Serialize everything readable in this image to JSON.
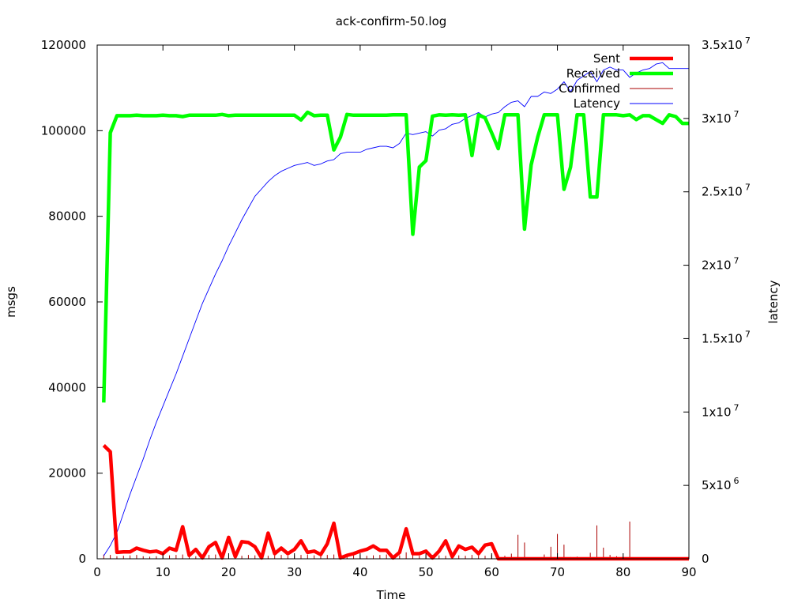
{
  "chart_data": {
    "type": "line",
    "title": "ack-confirm-50.log",
    "xlabel": "Time",
    "ylabel": "msgs",
    "y2label": "latency",
    "xlim": [
      0,
      90
    ],
    "ylim": [
      0,
      120000
    ],
    "y2lim": [
      0,
      35000000
    ],
    "xticks": [
      "0",
      "10",
      "20",
      "30",
      "40",
      "50",
      "60",
      "70",
      "80",
      "90"
    ],
    "yticks": [
      "0",
      "20000",
      "40000",
      "60000",
      "80000",
      "100000",
      "120000"
    ],
    "y2ticks": [
      {
        "mant": "0",
        "exp": ""
      },
      {
        "mant": "5x10",
        "exp": "6"
      },
      {
        "mant": "1x10",
        "exp": "7"
      },
      {
        "mant": "1.5x10",
        "exp": "7"
      },
      {
        "mant": "2x10",
        "exp": "7"
      },
      {
        "mant": "2.5x10",
        "exp": "7"
      },
      {
        "mant": "3x10",
        "exp": "7"
      },
      {
        "mant": "3.5x10",
        "exp": "7"
      }
    ],
    "legend_position": "top-right",
    "series": [
      {
        "name": "Sent",
        "axis": "y1",
        "color": "#ff0000",
        "style": "thick-line",
        "x": [
          1,
          2,
          3,
          4,
          5,
          6,
          7,
          8,
          9,
          10,
          11,
          12,
          13,
          14,
          15,
          16,
          17,
          18,
          19,
          20,
          21,
          22,
          23,
          24,
          25,
          26,
          27,
          28,
          29,
          30,
          31,
          32,
          33,
          34,
          35,
          36,
          37,
          38,
          39,
          40,
          41,
          42,
          43,
          44,
          45,
          46,
          47,
          48,
          49,
          50,
          51,
          52,
          53,
          54,
          55,
          56,
          57,
          58,
          59,
          60,
          61,
          62,
          63,
          64,
          65,
          66,
          67,
          68,
          69,
          70,
          71,
          72,
          73,
          74,
          75,
          76,
          77,
          78,
          79,
          80,
          81,
          82,
          83,
          84,
          85,
          86,
          87,
          88,
          89,
          90
        ],
        "values": [
          26500,
          25000,
          1500,
          1600,
          1600,
          2500,
          2000,
          1600,
          1800,
          1200,
          2500,
          2000,
          7500,
          800,
          2200,
          200,
          2800,
          3800,
          200,
          5000,
          500,
          4000,
          3800,
          2800,
          200,
          6000,
          1200,
          2500,
          1200,
          2200,
          4200,
          1500,
          1800,
          1000,
          3500,
          8300,
          200,
          800,
          1200,
          1800,
          2200,
          3000,
          2000,
          2000,
          200,
          1500,
          7000,
          1200,
          1200,
          1800,
          200,
          1800,
          4200,
          500,
          3000,
          2200,
          2700,
          1200,
          3200,
          3500,
          0,
          0,
          0,
          0,
          0,
          0,
          0,
          0,
          0,
          0,
          0,
          0,
          0,
          0,
          0,
          0,
          0,
          0,
          0,
          0,
          0,
          0,
          0,
          0,
          0,
          0,
          0,
          0,
          0,
          0
        ]
      },
      {
        "name": "Received",
        "axis": "y1",
        "color": "#00ff00",
        "style": "thick-line",
        "x": [
          1,
          2,
          3,
          4,
          5,
          6,
          7,
          8,
          9,
          10,
          11,
          12,
          13,
          14,
          15,
          16,
          17,
          18,
          19,
          20,
          21,
          22,
          23,
          24,
          25,
          26,
          27,
          28,
          29,
          30,
          31,
          32,
          33,
          34,
          35,
          36,
          37,
          38,
          39,
          40,
          41,
          42,
          43,
          44,
          45,
          46,
          47,
          48,
          49,
          50,
          51,
          52,
          53,
          54,
          55,
          56,
          57,
          58,
          59,
          60,
          61,
          62,
          63,
          64,
          65,
          66,
          67,
          68,
          69,
          70,
          71,
          72,
          73,
          74,
          75,
          76,
          77,
          78,
          79,
          80,
          81,
          82,
          83,
          84,
          85,
          86,
          87,
          88,
          89,
          90
        ],
        "values": [
          36500,
          99500,
          103500,
          103500,
          103500,
          103600,
          103500,
          103500,
          103500,
          103600,
          103500,
          103500,
          103300,
          103600,
          103600,
          103600,
          103600,
          103600,
          103800,
          103500,
          103600,
          103600,
          103600,
          103600,
          103600,
          103600,
          103600,
          103600,
          103600,
          103600,
          102500,
          104300,
          103500,
          103600,
          103600,
          95500,
          98500,
          103800,
          103600,
          103600,
          103600,
          103600,
          103600,
          103600,
          103700,
          103700,
          103700,
          75800,
          91500,
          93000,
          103400,
          103700,
          103600,
          103700,
          103600,
          103700,
          94200,
          103700,
          103000,
          99500,
          95800,
          103700,
          103700,
          103700,
          77000,
          92000,
          98500,
          103700,
          103700,
          103700,
          86300,
          91500,
          103700,
          103700,
          84500,
          84500,
          103700,
          103700,
          103700,
          103500,
          103700,
          102600,
          103500,
          103500,
          102600,
          101700,
          103700,
          103300,
          101700,
          101700
        ]
      },
      {
        "name": "Confirmed",
        "axis": "y1",
        "color": "#aa0000",
        "style": "impulses",
        "x": [
          1,
          2,
          3,
          4,
          5,
          6,
          7,
          8,
          9,
          10,
          11,
          12,
          13,
          14,
          15,
          16,
          17,
          18,
          19,
          20,
          21,
          22,
          23,
          24,
          25,
          26,
          27,
          28,
          29,
          30,
          31,
          32,
          33,
          34,
          35,
          36,
          37,
          38,
          39,
          40,
          41,
          42,
          43,
          44,
          45,
          46,
          47,
          48,
          49,
          50,
          51,
          52,
          53,
          54,
          55,
          56,
          57,
          58,
          59,
          60,
          61,
          62,
          63,
          64,
          65,
          66,
          67,
          68,
          69,
          70,
          71,
          72,
          73,
          74,
          75,
          76,
          77,
          78,
          79,
          80,
          81,
          82,
          83,
          84,
          85,
          86,
          87,
          88,
          89,
          90
        ],
        "values": [
          1000,
          900,
          600,
          700,
          800,
          900,
          600,
          500,
          600,
          700,
          800,
          900,
          1000,
          700,
          600,
          800,
          900,
          1000,
          700,
          800,
          600,
          700,
          900,
          800,
          600,
          700,
          800,
          900,
          700,
          800,
          900,
          1000,
          800,
          700,
          900,
          1000,
          800,
          700,
          800,
          900,
          700,
          800,
          900,
          1000,
          700,
          800,
          1500,
          900,
          700,
          800,
          900,
          800,
          700,
          900,
          800,
          700,
          900,
          800,
          700,
          900,
          800,
          700,
          1200,
          5600,
          3800,
          300,
          200,
          1000,
          2800,
          5800,
          3300,
          400,
          500,
          300,
          1400,
          7800,
          2600,
          900,
          600,
          400,
          8700,
          300,
          200,
          200,
          200,
          200,
          200,
          200,
          200,
          200
        ]
      },
      {
        "name": "Latency",
        "axis": "y2",
        "color": "#0000ff",
        "style": "thin-line",
        "x": [
          1,
          2,
          3,
          4,
          5,
          6,
          7,
          8,
          9,
          10,
          11,
          12,
          13,
          14,
          15,
          16,
          17,
          18,
          19,
          20,
          21,
          22,
          23,
          24,
          25,
          26,
          27,
          28,
          29,
          30,
          31,
          32,
          33,
          34,
          35,
          36,
          37,
          38,
          39,
          40,
          41,
          42,
          43,
          44,
          45,
          46,
          47,
          48,
          49,
          50,
          51,
          52,
          53,
          54,
          55,
          56,
          57,
          58,
          59,
          60,
          61,
          62,
          63,
          64,
          65,
          66,
          67,
          68,
          69,
          70,
          71,
          72,
          73,
          74,
          75,
          76,
          77,
          78,
          79,
          80,
          81,
          82,
          83,
          84,
          85,
          86,
          87,
          88,
          89,
          90
        ],
        "values": [
          200000,
          900000,
          1800000,
          3100000,
          4400000,
          5600000,
          6800000,
          8100000,
          9300000,
          10400000,
          11500000,
          12600000,
          13800000,
          15000000,
          16200000,
          17400000,
          18400000,
          19400000,
          20300000,
          21300000,
          22200000,
          23100000,
          23900000,
          24700000,
          25200000,
          25700000,
          26100000,
          26400000,
          26600000,
          26800000,
          26900000,
          27000000,
          26800000,
          26900000,
          27100000,
          27200000,
          27600000,
          27700000,
          27700000,
          27700000,
          27900000,
          28000000,
          28100000,
          28100000,
          28000000,
          28300000,
          29000000,
          28900000,
          29000000,
          29100000,
          28800000,
          29200000,
          29300000,
          29600000,
          29700000,
          30000000,
          30200000,
          30400000,
          30100000,
          30300000,
          30400000,
          30800000,
          31100000,
          31200000,
          30800000,
          31500000,
          31500000,
          31800000,
          31700000,
          32000000,
          32500000,
          31800000,
          32600000,
          32900000,
          33200000,
          32500000,
          33300000,
          33500000,
          33300000,
          33300000,
          32800000,
          33100000,
          33300000,
          33400000,
          33700000,
          33800000,
          33400000,
          33400000,
          33400000,
          33400000
        ]
      }
    ]
  }
}
